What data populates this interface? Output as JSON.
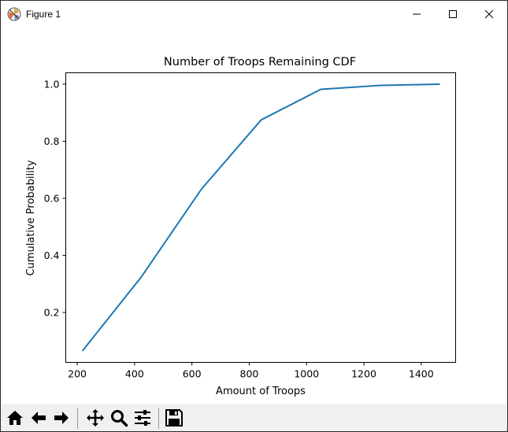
{
  "window": {
    "title": "Figure 1"
  },
  "toolbar": {
    "buttons": [
      {
        "name": "home-icon"
      },
      {
        "name": "back-arrow-icon"
      },
      {
        "name": "forward-arrow-icon"
      },
      {
        "name": "pan-icon"
      },
      {
        "name": "zoom-icon"
      },
      {
        "name": "configure-subplots-icon"
      },
      {
        "name": "save-icon"
      }
    ]
  },
  "colors": {
    "line": "#1f77b4",
    "toolbar_bg": "#f0f0f0"
  },
  "chart_data": {
    "type": "line",
    "title": "Number of Troops Remaining CDF",
    "xlabel": "Amount of Troops",
    "ylabel": "Cumulative Probability",
    "xlim": [
      160,
      1520
    ],
    "ylim": [
      0.025,
      1.04
    ],
    "xticks": [
      200,
      400,
      600,
      800,
      1000,
      1200,
      1400
    ],
    "xtick_labels": [
      "200",
      "400",
      "600",
      "800",
      "1000",
      "1200",
      "1400"
    ],
    "yticks": [
      0.2,
      0.4,
      0.6,
      0.8,
      1.0
    ],
    "ytick_labels": [
      "0.2",
      "0.4",
      "0.6",
      "0.8",
      "1.0"
    ],
    "grid": false,
    "series": [
      {
        "x": [
          218,
          424,
          633,
          842,
          1050,
          1258,
          1465
        ],
        "y": [
          0.065,
          0.325,
          0.632,
          0.875,
          0.982,
          0.996,
          1.0
        ]
      }
    ]
  }
}
